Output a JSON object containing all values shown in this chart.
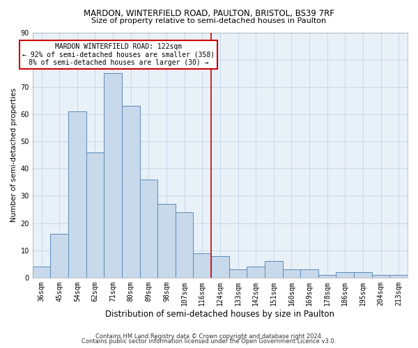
{
  "title1": "MARDON, WINTERFIELD ROAD, PAULTON, BRISTOL, BS39 7RF",
  "title2": "Size of property relative to semi-detached houses in Paulton",
  "xlabel": "Distribution of semi-detached houses by size in Paulton",
  "ylabel": "Number of semi-detached properties",
  "footer1": "Contains HM Land Registry data © Crown copyright and database right 2024.",
  "footer2": "Contains public sector information licensed under the Open Government Licence v3.0.",
  "annotation_title": "MARDON WINTERFIELD ROAD: 122sqm",
  "annotation_line1": "← 92% of semi-detached houses are smaller (358)",
  "annotation_line2": "8% of semi-detached houses are larger (30) →",
  "categories": [
    "36sqm",
    "45sqm",
    "54sqm",
    "62sqm",
    "71sqm",
    "80sqm",
    "89sqm",
    "98sqm",
    "107sqm",
    "116sqm",
    "124sqm",
    "133sqm",
    "142sqm",
    "151sqm",
    "160sqm",
    "169sqm",
    "178sqm",
    "186sqm",
    "195sqm",
    "204sqm",
    "213sqm"
  ],
  "values": [
    4,
    16,
    61,
    46,
    75,
    63,
    36,
    27,
    24,
    9,
    8,
    3,
    4,
    6,
    3,
    3,
    1,
    2,
    2,
    1,
    1
  ],
  "bar_color": "#c8d9eb",
  "bar_edge_color": "#5a8ab5",
  "vline_color": "#cc0000",
  "vline_x": 9.5,
  "grid_color": "#c8d8e8",
  "bg_color": "#e8f0f8",
  "annotation_box_edge_color": "#cc0000",
  "ylim": [
    0,
    90
  ],
  "yticks": [
    0,
    10,
    20,
    30,
    40,
    50,
    60,
    70,
    80,
    90
  ],
  "title1_fontsize": 8.5,
  "title2_fontsize": 8.0,
  "ylabel_fontsize": 7.5,
  "xlabel_fontsize": 8.5,
  "tick_fontsize": 7.0,
  "annotation_fontsize": 7.0,
  "footer_fontsize": 6.0
}
